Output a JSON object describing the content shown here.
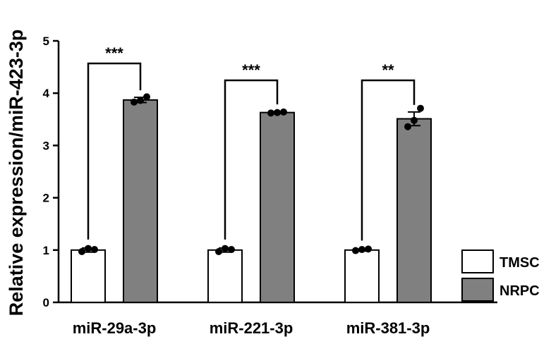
{
  "chart_data": {
    "type": "bar",
    "title": "",
    "xlabel": "",
    "ylabel": "Relative expression/miR-423-3p",
    "ylim": [
      0,
      5
    ],
    "yticks": [
      0,
      1,
      2,
      3,
      4,
      5
    ],
    "categories": [
      "miR-29a-3p",
      "miR-221-3p",
      "miR-381-3p"
    ],
    "series": [
      {
        "name": "TMSC",
        "color": "#ffffff",
        "values": [
          1.0,
          1.0,
          1.0
        ],
        "errors": [
          0.04,
          0.04,
          0.02
        ],
        "points": [
          [
            0.97,
            1.03,
            1.01
          ],
          [
            0.97,
            1.03,
            1.01
          ],
          [
            0.99,
            1.01,
            1.02
          ]
        ]
      },
      {
        "name": "NRPC",
        "color": "#808080",
        "values": [
          3.87,
          3.63,
          3.51
        ],
        "errors": [
          0.05,
          0.02,
          0.13
        ],
        "points": [
          [
            3.83,
            3.86,
            3.93
          ],
          [
            3.62,
            3.63,
            3.64
          ],
          [
            3.36,
            3.48,
            3.71
          ]
        ]
      }
    ],
    "significance": [
      "***",
      "***",
      "**"
    ],
    "legend": {
      "placement": "bottom-right"
    },
    "grid": false
  }
}
